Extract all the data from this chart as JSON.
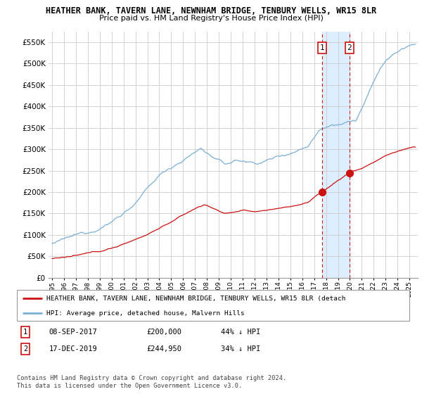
{
  "title1": "HEATHER BANK, TAVERN LANE, NEWNHAM BRIDGE, TENBURY WELLS, WR15 8LR",
  "title2": "Price paid vs. HM Land Registry's House Price Index (HPI)",
  "ylim": [
    0,
    575000
  ],
  "yticks": [
    0,
    50000,
    100000,
    150000,
    200000,
    250000,
    300000,
    350000,
    400000,
    450000,
    500000,
    550000
  ],
  "ytick_labels": [
    "£0",
    "£50K",
    "£100K",
    "£150K",
    "£200K",
    "£250K",
    "£300K",
    "£350K",
    "£400K",
    "£450K",
    "£500K",
    "£550K"
  ],
  "hpi_color": "#7bafd4",
  "price_color": "#cc1111",
  "shade_color": "#ddeeff",
  "sale1_t": 2017.67,
  "sale2_t": 2019.96,
  "sale1_p": 200000,
  "sale2_p": 244950,
  "legend_line1": "HEATHER BANK, TAVERN LANE, NEWNHAM BRIDGE, TENBURY WELLS, WR15 8LR (detach",
  "legend_line2": "HPI: Average price, detached house, Malvern Hills",
  "note1_num": "1",
  "note1_date": "08-SEP-2017",
  "note1_price": "£200,000",
  "note1_pct": "44% ↓ HPI",
  "note2_num": "2",
  "note2_date": "17-DEC-2019",
  "note2_price": "£244,950",
  "note2_pct": "34% ↓ HPI",
  "footer": "Contains HM Land Registry data © Crown copyright and database right 2024.\nThis data is licensed under the Open Government Licence v3.0.",
  "grid_color": "#cccccc"
}
